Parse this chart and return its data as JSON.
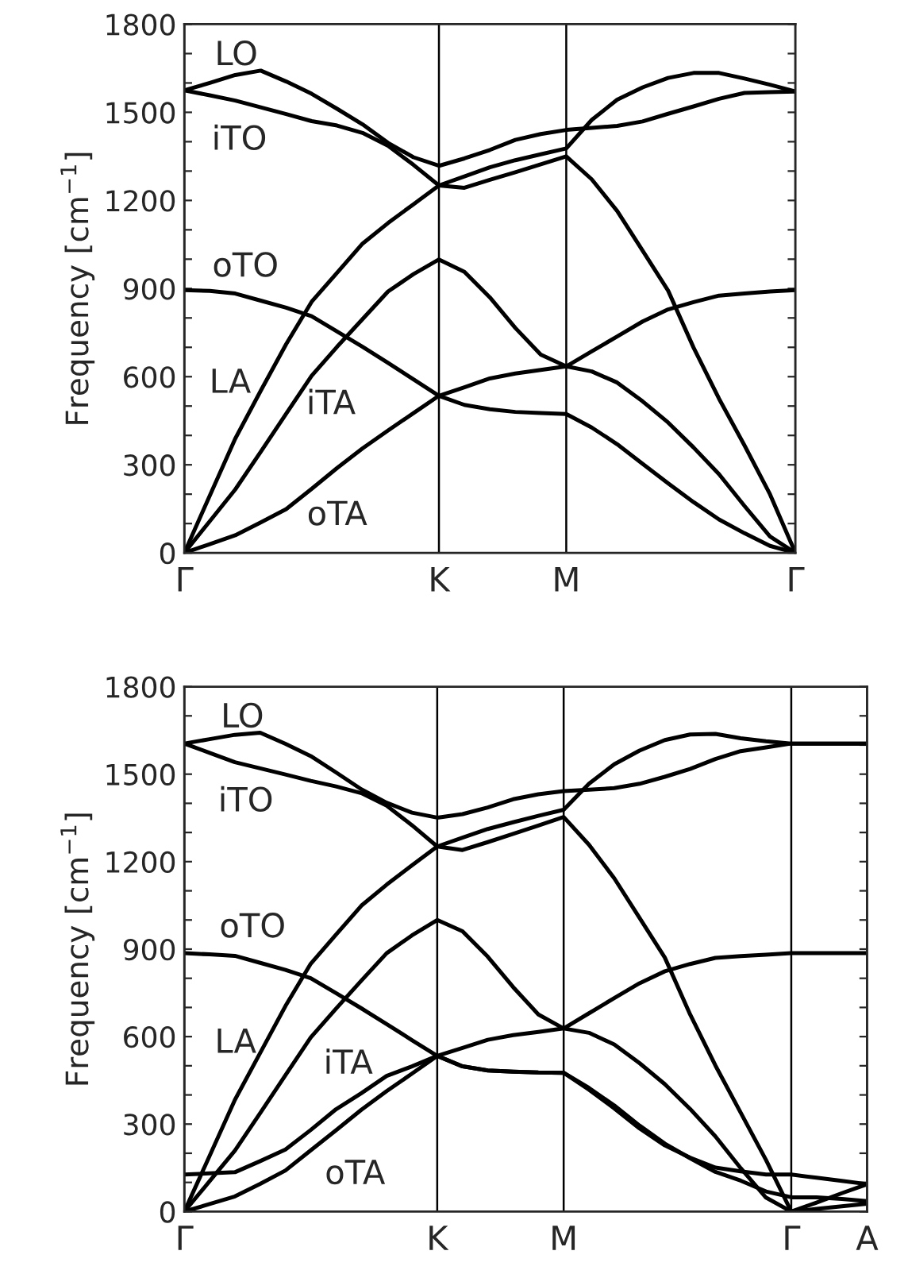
{
  "chart_data": [
    {
      "type": "line",
      "ylabel": "Frequency [cm$^{−1}$]",
      "ylim": [
        0,
        1800
      ],
      "categories": [
        "Γ",
        null,
        null,
        null,
        null,
        null,
        null,
        null,
        null,
        null,
        "K",
        null,
        null,
        null,
        null,
        "M",
        null,
        null,
        null,
        null,
        null,
        null,
        null,
        null,
        "Γ"
      ],
      "yticks": [
        0,
        {
          "value": 100,
          "label": null
        },
        {
          "value": 200,
          "label": null
        },
        300,
        {
          "value": 400,
          "label": null
        },
        {
          "value": 500,
          "label": null
        },
        600,
        {
          "value": 700,
          "label": null
        },
        {
          "value": 800,
          "label": null
        },
        900,
        {
          "value": 1000,
          "label": null
        },
        {
          "value": 1100,
          "label": null
        },
        1200,
        {
          "value": 1300,
          "label": null
        },
        {
          "value": 1400,
          "label": null
        },
        1500,
        {
          "value": 1600,
          "label": null
        },
        {
          "value": 1700,
          "label": null
        },
        1800
      ],
      "grid": "x",
      "annotations": [
        "LO",
        "iTO",
        "oTO",
        "LA",
        "iTA",
        "oTA"
      ],
      "series": [
        {
          "color": "#000000",
          "values": [
            1575,
            1600,
            1627,
            1642,
            1605,
            1563,
            1512,
            1459,
            1396,
            1347,
            1318,
            1343,
            1372,
            1406,
            1426,
            1440,
            1447,
            1454,
            1469,
            1495,
            1520,
            1546,
            1566,
            1569,
            1571
          ]
        },
        {
          "color": "#000000",
          "values": [
            1575,
            1558,
            1540,
            1517,
            1494,
            1470,
            1455,
            1430,
            1386,
            1321,
            1251,
            1243,
            1270,
            1296,
            1323,
            1350,
            1272,
            1164,
            1029,
            893,
            699,
            525,
            366,
            200,
            0
          ]
        },
        {
          "color": "#000000",
          "values": [
            0,
            195,
            389,
            552,
            711,
            855,
            954,
            1053,
            1123,
            1187,
            1251,
            1282,
            1313,
            1337,
            1357,
            1377,
            1474,
            1543,
            1585,
            1617,
            1634,
            1634,
            1615,
            1594,
            1571
          ]
        },
        {
          "color": "#000000",
          "values": [
            895,
            892,
            883,
            859,
            835,
            806,
            754,
            702,
            647,
            591,
            535,
            504,
            489,
            480,
            476,
            473,
            427,
            370,
            303,
            237,
            173,
            114,
            67,
            24,
            0
          ]
        },
        {
          "color": "#000000",
          "values": [
            0,
            108,
            216,
            344,
            474,
            603,
            702,
            796,
            890,
            949,
            999,
            957,
            870,
            766,
            675,
            635,
            686,
            737,
            788,
            829,
            854,
            876,
            883,
            890,
            895
          ]
        },
        {
          "color": "#000000",
          "values": [
            0,
            30,
            60,
            104,
            149,
            218,
            289,
            356,
            417,
            476,
            535,
            564,
            594,
            611,
            623,
            635,
            618,
            580,
            516,
            444,
            359,
            268,
            160,
            56,
            0
          ]
        }
      ]
    },
    {
      "type": "line",
      "ylabel": "Frequency [cm$^{−1}$]",
      "ylim": [
        0,
        1800
      ],
      "categories": [
        "Γ",
        null,
        null,
        null,
        null,
        null,
        null,
        null,
        null,
        null,
        "K",
        null,
        null,
        null,
        null,
        "M",
        null,
        null,
        null,
        null,
        null,
        null,
        null,
        null,
        "Γ",
        null,
        null,
        "A"
      ],
      "yticks": [
        0,
        {
          "value": 100,
          "label": null
        },
        {
          "value": 200,
          "label": null
        },
        300,
        {
          "value": 400,
          "label": null
        },
        {
          "value": 500,
          "label": null
        },
        600,
        {
          "value": 700,
          "label": null
        },
        {
          "value": 800,
          "label": null
        },
        900,
        {
          "value": 1000,
          "label": null
        },
        {
          "value": 1100,
          "label": null
        },
        1200,
        {
          "value": 1300,
          "label": null
        },
        {
          "value": 1400,
          "label": null
        },
        1500,
        {
          "value": 1600,
          "label": null
        },
        {
          "value": 1700,
          "label": null
        },
        1800
      ],
      "grid": "x",
      "annotations": [
        "LO",
        "iTO",
        "oTO",
        "LA",
        "iTA",
        "oTA"
      ],
      "series": [
        {
          "color": "#000000",
          "values": [
            1605,
            1620,
            1635,
            1642,
            1604,
            1562,
            1506,
            1448,
            1402,
            1368,
            1351,
            1363,
            1386,
            1414,
            1431,
            1442,
            1447,
            1452,
            1467,
            1491,
            1518,
            1552,
            1579,
            1592,
            1605,
            1605,
            1605,
            1605
          ]
        },
        {
          "color": "#000000",
          "values": [
            1605,
            1573,
            1541,
            1520,
            1499,
            1477,
            1458,
            1435,
            1392,
            1325,
            1252,
            1240,
            1267,
            1295,
            1324,
            1353,
            1258,
            1143,
            1007,
            871,
            676,
            501,
            339,
            177,
            0,
            31,
            63,
            94
          ]
        },
        {
          "color": "#000000",
          "values": [
            0,
            191,
            383,
            544,
            705,
            850,
            950,
            1049,
            1121,
            1187,
            1252,
            1282,
            1312,
            1335,
            1357,
            1378,
            1467,
            1534,
            1581,
            1617,
            1636,
            1638,
            1623,
            1613,
            1605,
            1605,
            1605,
            1605
          ]
        },
        {
          "color": "#000000",
          "values": [
            886,
            882,
            877,
            853,
            829,
            800,
            749,
            697,
            643,
            588,
            534,
            498,
            484,
            480,
            477,
            476,
            424,
            364,
            295,
            233,
            183,
            136,
            106,
            69,
            49,
            49,
            43,
            36
          ]
        },
        {
          "color": "#000000",
          "values": [
            127,
            131,
            135,
            173,
            213,
            280,
            351,
            406,
            465,
            498,
            534,
            498,
            484,
            480,
            477,
            476,
            418,
            354,
            285,
            227,
            185,
            151,
            138,
            127,
            127,
            116,
            105,
            94
          ]
        },
        {
          "color": "#000000",
          "values": [
            0,
            104,
            209,
            338,
            468,
            597,
            696,
            792,
            886,
            947,
            1000,
            961,
            874,
            770,
            676,
            628,
            680,
            732,
            783,
            824,
            849,
            870,
            876,
            881,
            886,
            886,
            886,
            886
          ]
        },
        {
          "color": "#000000",
          "values": [
            0,
            26,
            52,
            95,
            141,
            210,
            279,
            349,
            413,
            473,
            534,
            561,
            589,
            605,
            616,
            628,
            613,
            573,
            509,
            437,
            352,
            258,
            149,
            48,
            0,
            9,
            18,
            27
          ]
        }
      ]
    }
  ]
}
